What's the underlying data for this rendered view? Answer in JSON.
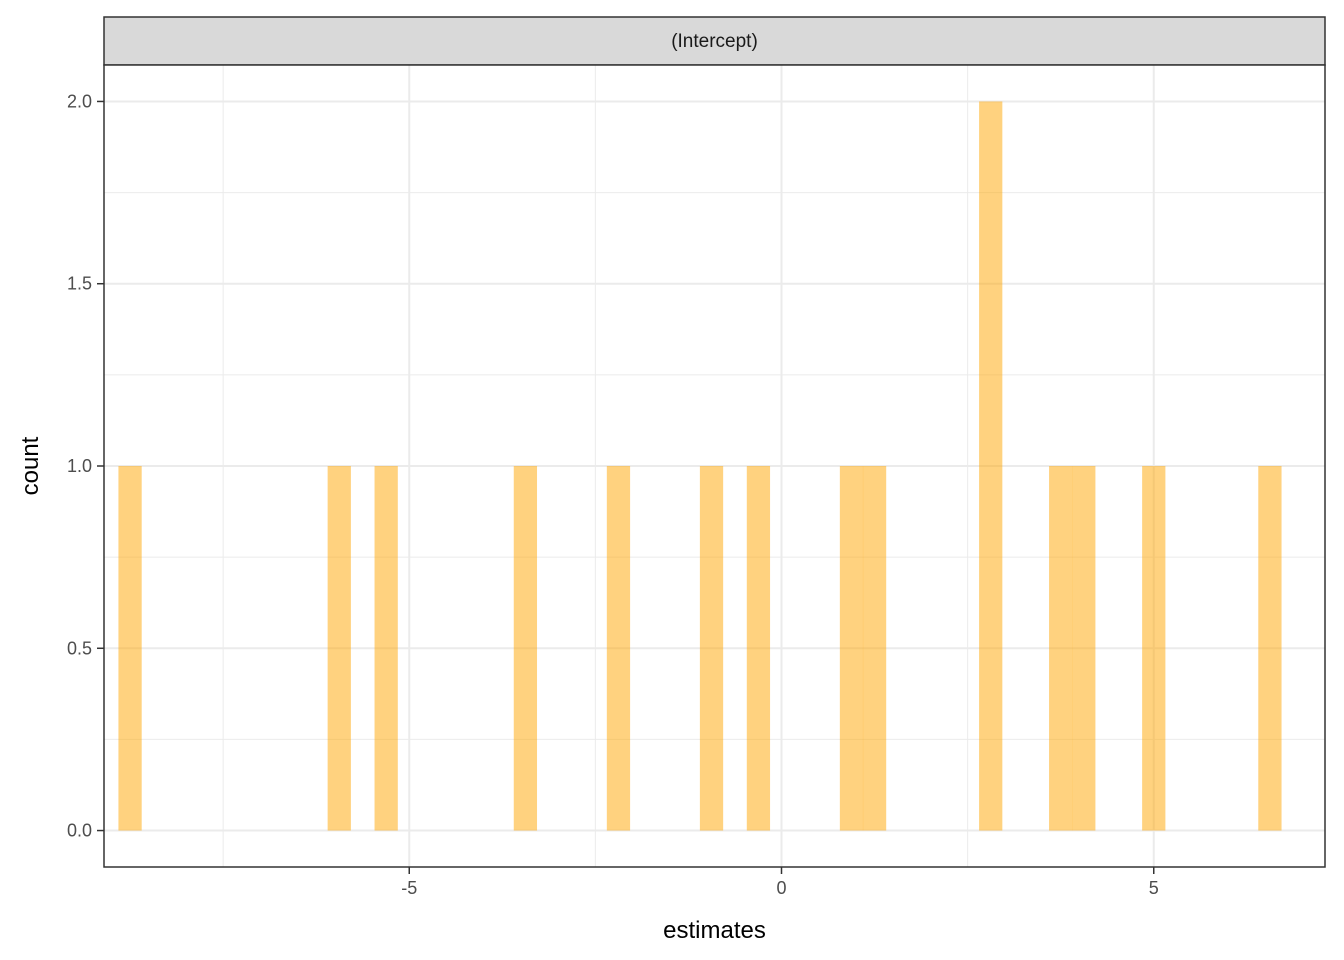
{
  "chart_data": {
    "type": "bar",
    "subtype": "histogram",
    "facet_label": "(Intercept)",
    "xlabel": "estimates",
    "ylabel": "count",
    "xlim": [
      -9.1,
      7.3
    ],
    "ylim": [
      -0.1,
      2.1
    ],
    "x_ticks": [
      -5,
      0,
      5
    ],
    "x_tick_labels": [
      "-5",
      "0",
      "5"
    ],
    "y_ticks": [
      0,
      0.5,
      1,
      1.5,
      2
    ],
    "y_tick_labels": [
      "0.0",
      "0.5",
      "1.0",
      "1.5",
      "2.0"
    ],
    "bin_width": 0.3125,
    "bins": [
      {
        "center": -8.75,
        "count": 1
      },
      {
        "center": -5.94,
        "count": 1
      },
      {
        "center": -5.31,
        "count": 1
      },
      {
        "center": -3.44,
        "count": 1
      },
      {
        "center": -2.19,
        "count": 1
      },
      {
        "center": -0.94,
        "count": 1
      },
      {
        "center": -0.31,
        "count": 1
      },
      {
        "center": 0.94,
        "count": 1
      },
      {
        "center": 1.25,
        "count": 1
      },
      {
        "center": 2.81,
        "count": 2
      },
      {
        "center": 3.75,
        "count": 1
      },
      {
        "center": 4.06,
        "count": 1
      },
      {
        "center": 5.0,
        "count": 1
      },
      {
        "center": 6.56,
        "count": 1
      }
    ],
    "bar_color": "#FFA500",
    "bar_opacity": 0.5,
    "grid": true,
    "theme": "bw"
  }
}
